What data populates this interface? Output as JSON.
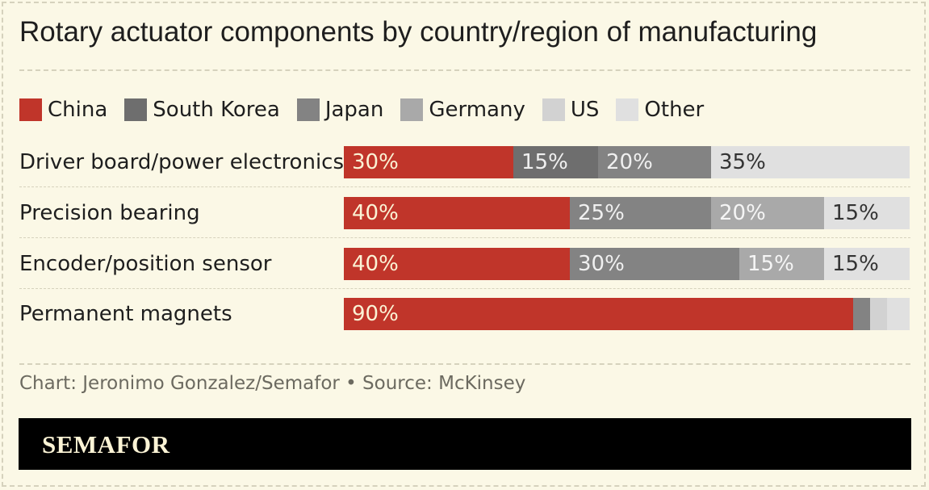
{
  "title": "Rotary actuator components by country/region of manufacturing",
  "source": "Chart: Jeronimo Gonzalez/Semafor • Source: McKinsey",
  "brand": "SEMAFOR",
  "colors": {
    "background": "#fbf8e6",
    "China": "#c0352a",
    "South Korea": "#6e6e6e",
    "Japan": "#838383",
    "Germany": "#a9a9a9",
    "US": "#d2d2d2",
    "Other": "#e0e0e0"
  },
  "chart_data": {
    "type": "bar",
    "orientation": "horizontal",
    "stacked": true,
    "xlim": [
      0,
      100
    ],
    "legend": "top-left",
    "categories": [
      "Driver board/power electronics",
      "Precision bearing",
      "Encoder/position sensor",
      "Permanent magnets"
    ],
    "series": [
      {
        "name": "China",
        "values": [
          30,
          40,
          40,
          90
        ],
        "labels": [
          "30%",
          "40%",
          "40%",
          "90%"
        ]
      },
      {
        "name": "South Korea",
        "values": [
          15,
          0,
          0,
          0
        ],
        "labels": [
          "15%",
          "",
          "",
          ""
        ]
      },
      {
        "name": "Japan",
        "values": [
          20,
          25,
          30,
          3
        ],
        "labels": [
          "20%",
          "25%",
          "30%",
          ""
        ]
      },
      {
        "name": "Germany",
        "values": [
          0,
          20,
          15,
          0
        ],
        "labels": [
          "",
          "20%",
          "15%",
          ""
        ]
      },
      {
        "name": "US",
        "values": [
          0,
          0,
          0,
          3
        ],
        "labels": [
          "",
          "",
          "",
          ""
        ]
      },
      {
        "name": "Other",
        "values": [
          35,
          15,
          15,
          4
        ],
        "labels": [
          "35%",
          "15%",
          "15%",
          ""
        ]
      }
    ]
  }
}
